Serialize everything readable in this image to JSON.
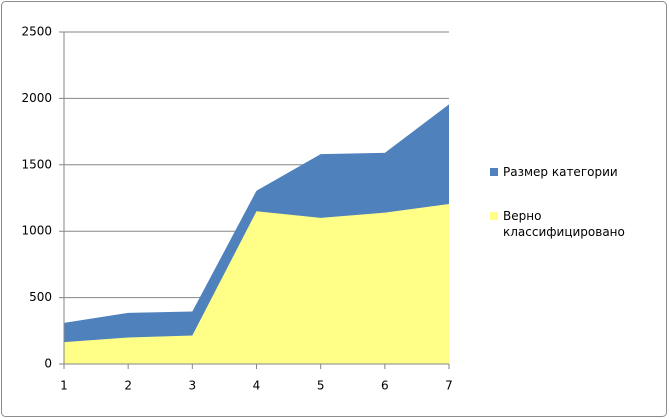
{
  "chart_data": {
    "type": "area",
    "x": [
      1,
      2,
      3,
      4,
      5,
      6,
      7
    ],
    "xlim": [
      1,
      7
    ],
    "xticks": [
      1,
      2,
      3,
      4,
      5,
      6,
      7
    ],
    "ylim": [
      0,
      2500
    ],
    "yticks": [
      0,
      500,
      1000,
      1500,
      2000,
      2500
    ],
    "grid": true,
    "legend": "right",
    "series": [
      {
        "name": "Размер категории",
        "color": "#4f81bd",
        "values": [
          310,
          385,
          395,
          1305,
          1580,
          1590,
          1955
        ]
      },
      {
        "name": "Верно классифицировано",
        "color": "#ffff88",
        "values": [
          165,
          200,
          215,
          1150,
          1100,
          1140,
          1205
        ]
      }
    ]
  }
}
